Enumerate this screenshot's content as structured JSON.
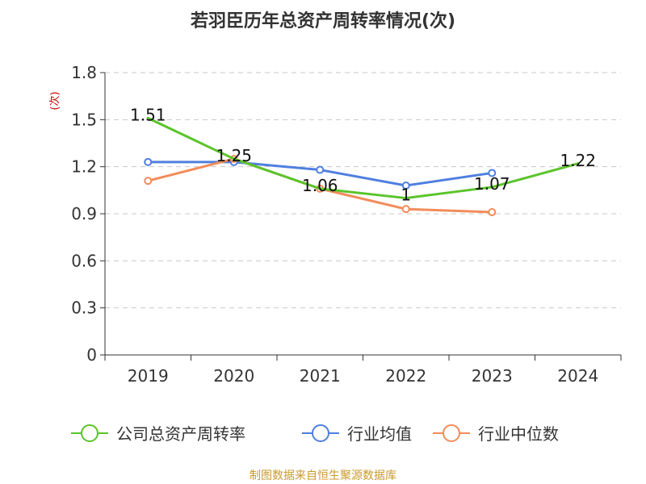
{
  "chart_data": {
    "type": "line",
    "title": "若羽臣历年总资产周转率情况(次)",
    "ylabel": "(次)",
    "xlabel": "",
    "categories": [
      "2019",
      "2020",
      "2021",
      "2022",
      "2023",
      "2024"
    ],
    "ylim": [
      0,
      1.8
    ],
    "yticks": [
      "0",
      "0.3",
      "0.6",
      "0.9",
      "1.2",
      "1.5",
      "1.8"
    ],
    "grid": "horizontal-dashed",
    "legend_position": "bottom",
    "series": [
      {
        "name": "公司总资产周转率",
        "color": "#5bc42b",
        "values": [
          1.51,
          1.25,
          1.06,
          1.0,
          1.07,
          1.22
        ],
        "labels": [
          "1.51",
          "1.25",
          "1.06",
          "1",
          "1.07",
          "1.22"
        ],
        "markers": false
      },
      {
        "name": "行业均值",
        "color": "#4f7fdf",
        "values": [
          1.23,
          1.23,
          1.18,
          1.08,
          1.16,
          null
        ],
        "markers": true
      },
      {
        "name": "行业中位数",
        "color": "#f28c5a",
        "values": [
          1.11,
          1.25,
          1.06,
          0.93,
          0.91,
          null
        ],
        "markers": true
      }
    ],
    "source": "制图数据来自恒生聚源数据库"
  }
}
